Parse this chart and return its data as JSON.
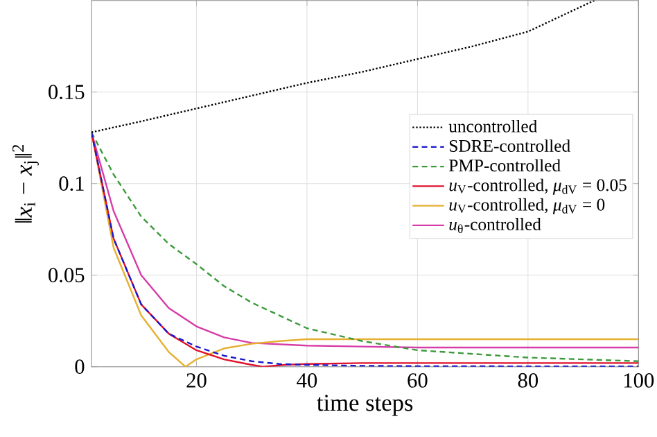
{
  "chart_data": {
    "type": "line",
    "xlabel": "time steps",
    "ylabel": "‖*x*$_{i}$ − *x*$_{j}$‖$^{2}$",
    "xlim": [
      1,
      100
    ],
    "xticks": [
      20,
      40,
      60,
      80,
      100
    ],
    "ylim": [
      0,
      0.2
    ],
    "yticks": [
      0,
      0.05,
      0.1,
      0.15
    ],
    "grid": true,
    "legend": "right",
    "series": [
      {
        "name": "uncontrolled",
        "color": "#000000",
        "line_style": "dotted",
        "x": [
          1,
          10,
          20,
          30,
          40,
          50,
          60,
          70,
          80,
          92
        ],
        "values": [
          0.128,
          0.134,
          0.141,
          0.148,
          0.155,
          0.161,
          0.168,
          0.175,
          0.183,
          0.2
        ]
      },
      {
        "name": "SDRE-controlled",
        "color": "#1a1acc",
        "line_style": "dashed",
        "x": [
          1,
          5,
          10,
          15,
          20,
          25,
          30,
          35,
          40,
          50,
          60,
          80,
          100
        ],
        "values": [
          0.128,
          0.07,
          0.034,
          0.018,
          0.011,
          0.006,
          0.003,
          0.0015,
          0.001,
          0.0005,
          0.0003,
          0.0002,
          0.0002
        ]
      },
      {
        "name": "PMP-controlled",
        "color": "#3c9a3c",
        "line_style": "dashed",
        "x": [
          1,
          5,
          10,
          15,
          20,
          25,
          30,
          40,
          50,
          60,
          70,
          80,
          90,
          100
        ],
        "values": [
          0.128,
          0.105,
          0.082,
          0.067,
          0.056,
          0.044,
          0.035,
          0.021,
          0.014,
          0.009,
          0.007,
          0.005,
          0.004,
          0.003
        ]
      },
      {
        "name": "*u*$_{V}$-controlled, *μ*$_{dV}$ = 0.05",
        "color": "#e0102a",
        "line_style": "solid",
        "x": [
          1,
          5,
          10,
          15,
          20,
          25,
          30,
          32,
          36,
          40,
          50,
          60,
          80,
          100
        ],
        "values": [
          0.128,
          0.07,
          0.034,
          0.018,
          0.009,
          0.004,
          0.001,
          0,
          0.001,
          0.0015,
          0.002,
          0.002,
          0.002,
          0.002
        ]
      },
      {
        "name": "*u*$_{V}$-controlled, *μ*$_{dV}$ = 0",
        "color": "#e6b030",
        "line_style": "solid",
        "x": [
          1,
          5,
          10,
          15,
          18,
          20,
          25,
          30,
          35,
          40,
          50,
          60,
          80,
          100
        ],
        "values": [
          0.128,
          0.065,
          0.028,
          0.008,
          0,
          0.004,
          0.01,
          0.0125,
          0.014,
          0.015,
          0.015,
          0.015,
          0.015,
          0.015
        ]
      },
      {
        "name": "*u*$_{θ}$-controlled",
        "color": "#d63ca8",
        "line_style": "solid",
        "x": [
          1,
          5,
          10,
          15,
          20,
          25,
          30,
          40,
          50,
          60,
          80,
          100
        ],
        "values": [
          0.128,
          0.085,
          0.05,
          0.032,
          0.022,
          0.016,
          0.013,
          0.0115,
          0.011,
          0.0105,
          0.0105,
          0.0105
        ]
      }
    ]
  }
}
